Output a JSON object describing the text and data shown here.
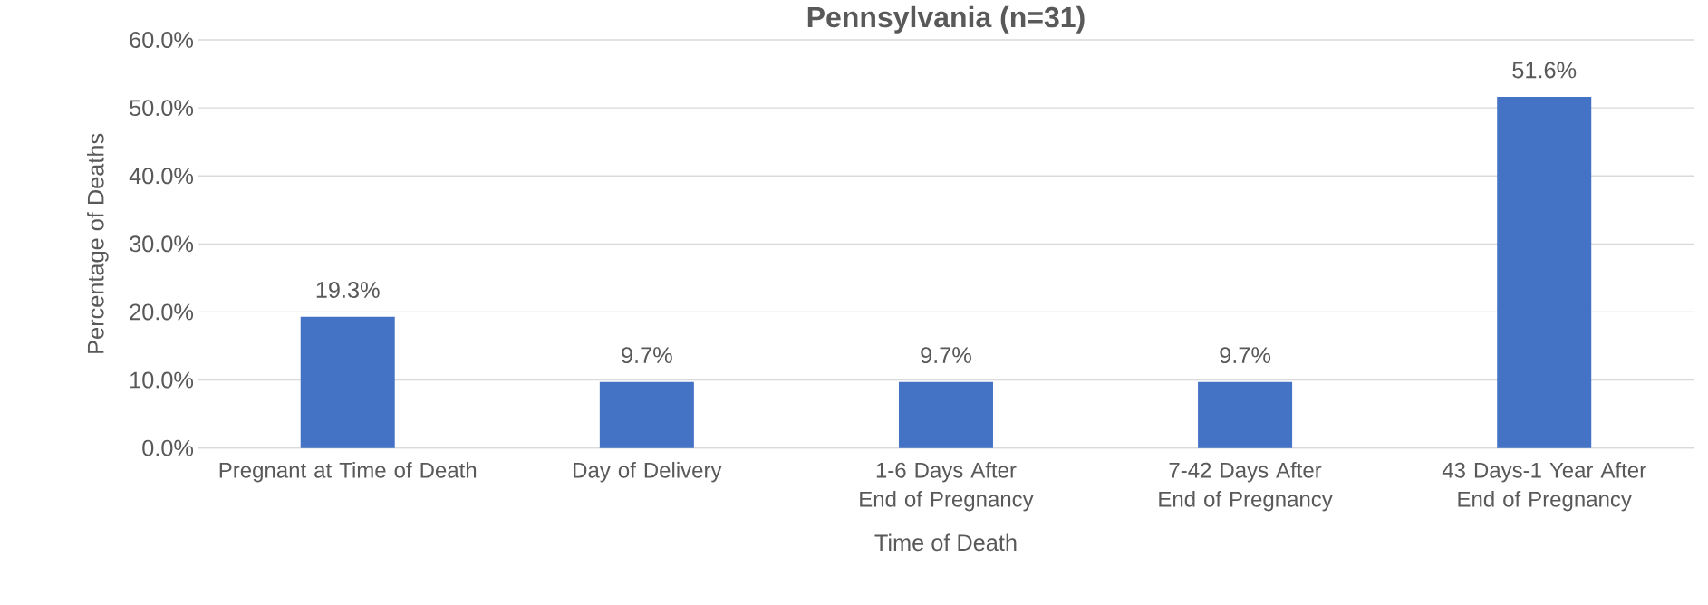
{
  "chart_data": {
    "type": "bar",
    "title": "Pennsylvania (n=31)",
    "xlabel": "Time of Death",
    "ylabel": "Percentage of Deaths",
    "categories": [
      "Pregnant at Time of Death",
      "Day of Delivery",
      "1-6 Days After End of Pregnancy",
      "7-42 Days After End of Pregnancy",
      "43 Days-1 Year After End of Pregnancy"
    ],
    "values": [
      19.3,
      9.7,
      9.7,
      9.7,
      51.6
    ],
    "value_labels": [
      "19.3%",
      "9.7%",
      "9.7%",
      "9.7%",
      "51.6%"
    ],
    "color": "#4472c4",
    "ylim": [
      0,
      60
    ],
    "yticks": [
      {
        "value": 0,
        "label": "0.0%"
      },
      {
        "value": 10,
        "label": "10.0%"
      },
      {
        "value": 20,
        "label": "20.0%"
      },
      {
        "value": 30,
        "label": "30.0%"
      },
      {
        "value": 40,
        "label": "40.0%"
      },
      {
        "value": 50,
        "label": "50.0%"
      },
      {
        "value": 60,
        "label": "60.0%"
      }
    ],
    "grid": "y"
  }
}
